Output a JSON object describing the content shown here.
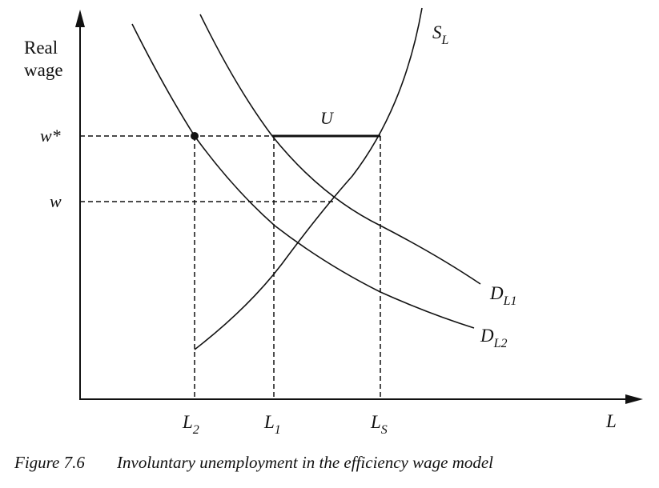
{
  "axes": {
    "y_label_line1": "Real",
    "y_label_line2": "wage",
    "x_label": "L"
  },
  "wage_ticks": {
    "w_star": "w*",
    "w": "w"
  },
  "labor_ticks": {
    "L2_main": "L",
    "L2_sub": "2",
    "L1_main": "L",
    "L1_sub": "1",
    "LS_main": "L",
    "LS_sub": "S"
  },
  "curves": {
    "supply_main": "S",
    "supply_sub": "L",
    "demand1_main": "D",
    "demand1_sub": "L1",
    "demand2_main": "D",
    "demand2_sub": "L2"
  },
  "gap_label": "U",
  "caption": {
    "number": "Figure 7.6",
    "title": "Involuntary unemployment in the efficiency wage model"
  }
}
